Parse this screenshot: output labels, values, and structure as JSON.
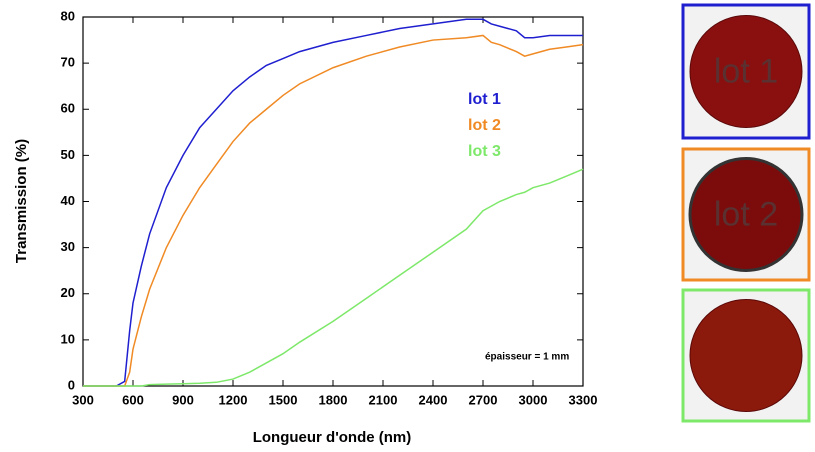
{
  "chart_data": {
    "type": "line",
    "xlabel": "Longueur d'onde (nm)",
    "ylabel": "Transmission (%)",
    "annotation": "épaisseur = 1 mm",
    "x": [
      300,
      500,
      550,
      580,
      600,
      650,
      700,
      800,
      900,
      1000,
      1100,
      1200,
      1300,
      1400,
      1500,
      1600,
      1800,
      2000,
      2200,
      2400,
      2600,
      2700,
      2750,
      2800,
      2900,
      2950,
      3000,
      3100,
      3200,
      3300
    ],
    "series": [
      {
        "name": "lot 1",
        "color": "#1f1fd0",
        "values": [
          0,
          0,
          1,
          12,
          18,
          26,
          33,
          43,
          50,
          56,
          60,
          64,
          67,
          69.5,
          71,
          72.5,
          74.5,
          76,
          77.5,
          78.5,
          79.5,
          79.5,
          78.5,
          78,
          77,
          75.5,
          75.5,
          76,
          76,
          76
        ]
      },
      {
        "name": "lot 2",
        "color": "#f08a24",
        "values": [
          0,
          0,
          0,
          3,
          8,
          15,
          21,
          30,
          37,
          43,
          48,
          53,
          57,
          60,
          63,
          65.5,
          69,
          71.5,
          73.5,
          75,
          75.5,
          76,
          74.5,
          74,
          72.5,
          71.5,
          72,
          73,
          73.5,
          74
        ]
      },
      {
        "name": "lot 3",
        "color": "#7ee86a",
        "values": [
          0,
          0,
          0,
          0,
          0,
          0,
          0.3,
          0.4,
          0.5,
          0.6,
          0.8,
          1.5,
          3,
          5,
          7,
          9.5,
          14,
          19,
          24,
          29,
          34,
          38,
          39,
          40,
          41.5,
          42,
          43,
          44,
          45.5,
          47
        ]
      }
    ],
    "xlim": [
      300,
      3300
    ],
    "xticks": [
      300,
      600,
      900,
      1200,
      1500,
      1800,
      2100,
      2400,
      2700,
      3000,
      3300
    ],
    "ylim": [
      0,
      80
    ],
    "yticks": [
      0,
      10,
      20,
      30,
      40,
      50,
      60,
      70,
      80
    ],
    "grid": false
  }
}
